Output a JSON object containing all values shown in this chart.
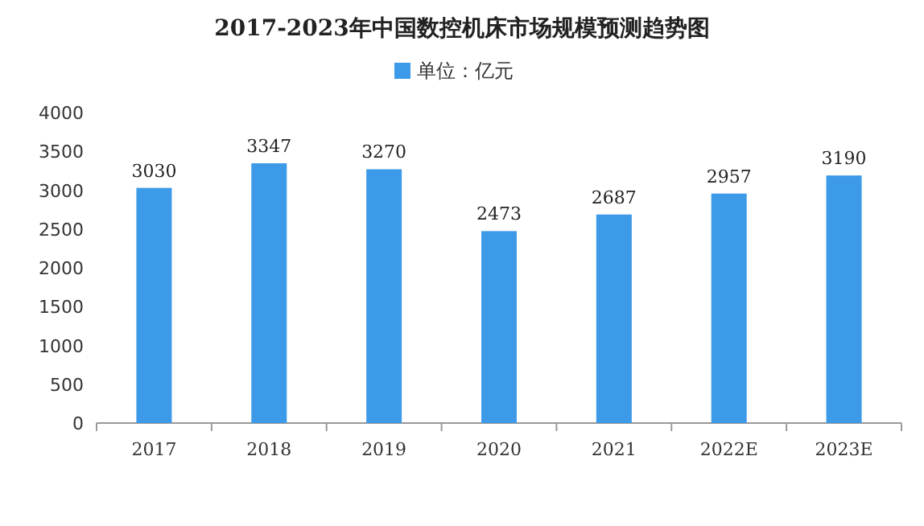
{
  "chart_data": {
    "type": "bar",
    "title": "2017-2023年中国数控机床市场规模预测趋势图",
    "categories": [
      "2017",
      "2018",
      "2019",
      "2020",
      "2021",
      "2022E",
      "2023E"
    ],
    "series": [
      {
        "name": "单位：亿元",
        "color": "#3d9ae8",
        "values": [
          3030,
          3347,
          3270,
          2473,
          2687,
          2957,
          3190
        ]
      }
    ],
    "ylim": [
      0,
      4000
    ],
    "yticks": [
      0,
      500,
      1000,
      1500,
      2000,
      2500,
      3000,
      3500,
      4000
    ],
    "data_labels": true,
    "legend": "top",
    "grid": false
  }
}
